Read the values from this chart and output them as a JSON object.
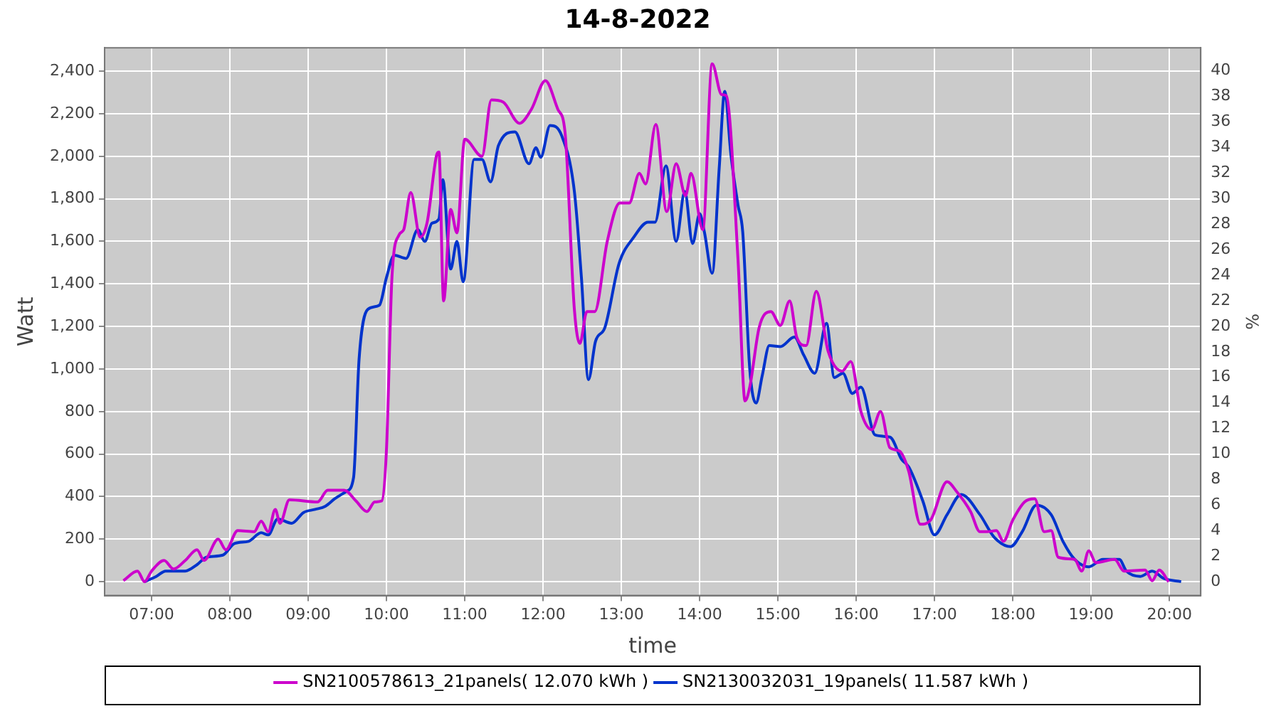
{
  "chart_data": {
    "type": "line",
    "title": "14-8-2022",
    "xlabel": "time",
    "ylabel": "Watt",
    "y2label": "%",
    "xlim": [
      6.4,
      20.4
    ],
    "xticks": [
      {
        "value": 7,
        "label": "07:00"
      },
      {
        "value": 8,
        "label": "08:00"
      },
      {
        "value": 9,
        "label": "09:00"
      },
      {
        "value": 10,
        "label": "10:00"
      },
      {
        "value": 11,
        "label": "11:00"
      },
      {
        "value": 12,
        "label": "12:00"
      },
      {
        "value": 13,
        "label": "13:00"
      },
      {
        "value": 14,
        "label": "14:00"
      },
      {
        "value": 15,
        "label": "15:00"
      },
      {
        "value": 16,
        "label": "16:00"
      },
      {
        "value": 17,
        "label": "17:00"
      },
      {
        "value": 18,
        "label": "18:00"
      },
      {
        "value": 19,
        "label": "19:00"
      },
      {
        "value": 20,
        "label": "20:00"
      }
    ],
    "ylim": [
      -65,
      2510
    ],
    "yticks": [
      0,
      200,
      400,
      600,
      800,
      {
        "value": 1000,
        "label": "1,000"
      },
      {
        "value": 1200,
        "label": "1,200"
      },
      {
        "value": 1400,
        "label": "1,400"
      },
      {
        "value": 1600,
        "label": "1,600"
      },
      {
        "value": 1800,
        "label": "1,800"
      },
      {
        "value": 2000,
        "label": "2,000"
      },
      {
        "value": 2200,
        "label": "2,200"
      },
      {
        "value": 2400,
        "label": "2,400"
      }
    ],
    "y2lim": [
      -1.08,
      41.8
    ],
    "y2ticks": [
      0,
      2,
      4,
      6,
      8,
      10,
      12,
      14,
      16,
      18,
      20,
      22,
      24,
      26,
      28,
      30,
      32,
      34,
      36,
      38,
      40
    ],
    "grid": true,
    "legend": "bottom",
    "series": [
      {
        "name": "SN2100578613_21panels( 12.070 kWh )",
        "color": "#cc00cc",
        "x": [
          6.64,
          6.82,
          6.91,
          7.0,
          7.16,
          7.28,
          7.43,
          7.58,
          7.67,
          7.85,
          7.95,
          8.1,
          8.31,
          8.4,
          8.49,
          8.58,
          8.64,
          8.76,
          9.12,
          9.25,
          9.46,
          9.61,
          9.75,
          9.85,
          9.94,
          10.0,
          10.07,
          10.16,
          10.22,
          10.31,
          10.43,
          10.52,
          10.64,
          10.67,
          10.73,
          10.82,
          10.9,
          11.0,
          11.22,
          11.34,
          11.49,
          11.7,
          11.85,
          12.03,
          12.19,
          12.28,
          12.4,
          12.47,
          12.56,
          12.66,
          12.82,
          12.98,
          13.1,
          13.23,
          13.31,
          13.44,
          13.58,
          13.7,
          13.82,
          13.89,
          14.04,
          14.16,
          14.28,
          14.34,
          14.49,
          14.58,
          14.64,
          14.76,
          14.91,
          15.03,
          15.15,
          15.24,
          15.36,
          15.49,
          15.64,
          15.82,
          15.93,
          16.06,
          16.2,
          16.31,
          16.43,
          16.55,
          16.67,
          16.82,
          16.95,
          17.16,
          17.28,
          17.46,
          17.58,
          17.67,
          17.79,
          17.88,
          18.0,
          18.15,
          18.28,
          18.4,
          18.49,
          18.58,
          18.79,
          18.88,
          18.97,
          19.06,
          19.3,
          19.42,
          19.69,
          19.78,
          19.87,
          19.99
        ],
        "values": [
          5,
          50,
          0,
          50,
          100,
          60,
          100,
          150,
          100,
          200,
          150,
          240,
          235,
          285,
          235,
          340,
          275,
          385,
          375,
          430,
          430,
          380,
          330,
          375,
          380,
          620,
          1430,
          1630,
          1655,
          1830,
          1620,
          1690,
          2005,
          2020,
          1320,
          1750,
          1640,
          2080,
          2000,
          2265,
          2255,
          2155,
          2220,
          2355,
          2220,
          2115,
          1280,
          1120,
          1270,
          1270,
          1600,
          1780,
          1780,
          1920,
          1870,
          2150,
          1740,
          1965,
          1815,
          1920,
          1655,
          2435,
          2290,
          2285,
          1515,
          850,
          915,
          1195,
          1270,
          1205,
          1320,
          1150,
          1110,
          1365,
          1085,
          990,
          1035,
          800,
          715,
          800,
          630,
          615,
          520,
          270,
          290,
          470,
          425,
          330,
          235,
          235,
          240,
          190,
          290,
          375,
          390,
          235,
          240,
          115,
          105,
          50,
          145,
          90,
          105,
          50,
          55,
          5,
          55,
          0
        ]
      },
      {
        "name": "SN2130032031_19panels( 11.587 kWh )",
        "color": "#0033cc",
        "x": [
          6.91,
          7.06,
          7.18,
          7.43,
          7.58,
          7.7,
          7.91,
          8.06,
          8.24,
          8.4,
          8.49,
          8.61,
          8.79,
          8.94,
          9.09,
          9.22,
          9.34,
          9.49,
          9.58,
          9.65,
          9.76,
          9.91,
          10.0,
          10.1,
          10.25,
          10.4,
          10.49,
          10.58,
          10.67,
          10.72,
          10.82,
          10.9,
          10.98,
          11.12,
          11.22,
          11.33,
          11.43,
          11.64,
          11.82,
          11.91,
          11.97,
          12.09,
          12.24,
          12.4,
          12.49,
          12.58,
          12.67,
          12.79,
          12.97,
          13.16,
          13.34,
          13.43,
          13.57,
          13.7,
          13.81,
          13.91,
          14.0,
          14.06,
          14.16,
          14.25,
          14.32,
          14.4,
          14.49,
          14.55,
          14.64,
          14.72,
          14.8,
          14.89,
          15.03,
          15.21,
          15.33,
          15.47,
          15.62,
          15.72,
          15.83,
          15.95,
          16.06,
          16.24,
          16.43,
          16.58,
          16.67,
          16.85,
          17.0,
          17.16,
          17.34,
          17.58,
          17.76,
          17.97,
          18.12,
          18.3,
          18.49,
          18.64,
          18.79,
          18.97,
          19.15,
          19.36,
          19.45,
          19.63,
          19.78,
          19.93,
          20.15
        ],
        "values": [
          0,
          25,
          50,
          50,
          80,
          115,
          125,
          180,
          190,
          230,
          220,
          295,
          275,
          325,
          340,
          355,
          390,
          425,
          490,
          1045,
          1280,
          1300,
          1430,
          1535,
          1520,
          1655,
          1600,
          1685,
          1705,
          1890,
          1470,
          1600,
          1410,
          1985,
          1985,
          1880,
          2050,
          2115,
          1965,
          2040,
          1995,
          2145,
          2095,
          1835,
          1430,
          950,
          1130,
          1195,
          1495,
          1620,
          1690,
          1690,
          1955,
          1600,
          1835,
          1590,
          1730,
          1645,
          1450,
          1945,
          2305,
          2005,
          1770,
          1645,
          1000,
          840,
          970,
          1110,
          1105,
          1150,
          1065,
          980,
          1215,
          960,
          980,
          885,
          915,
          690,
          680,
          575,
          540,
          380,
          220,
          315,
          410,
          315,
          210,
          165,
          235,
          360,
          315,
          190,
          105,
          70,
          105,
          105,
          50,
          25,
          50,
          15,
          0
        ]
      }
    ]
  }
}
